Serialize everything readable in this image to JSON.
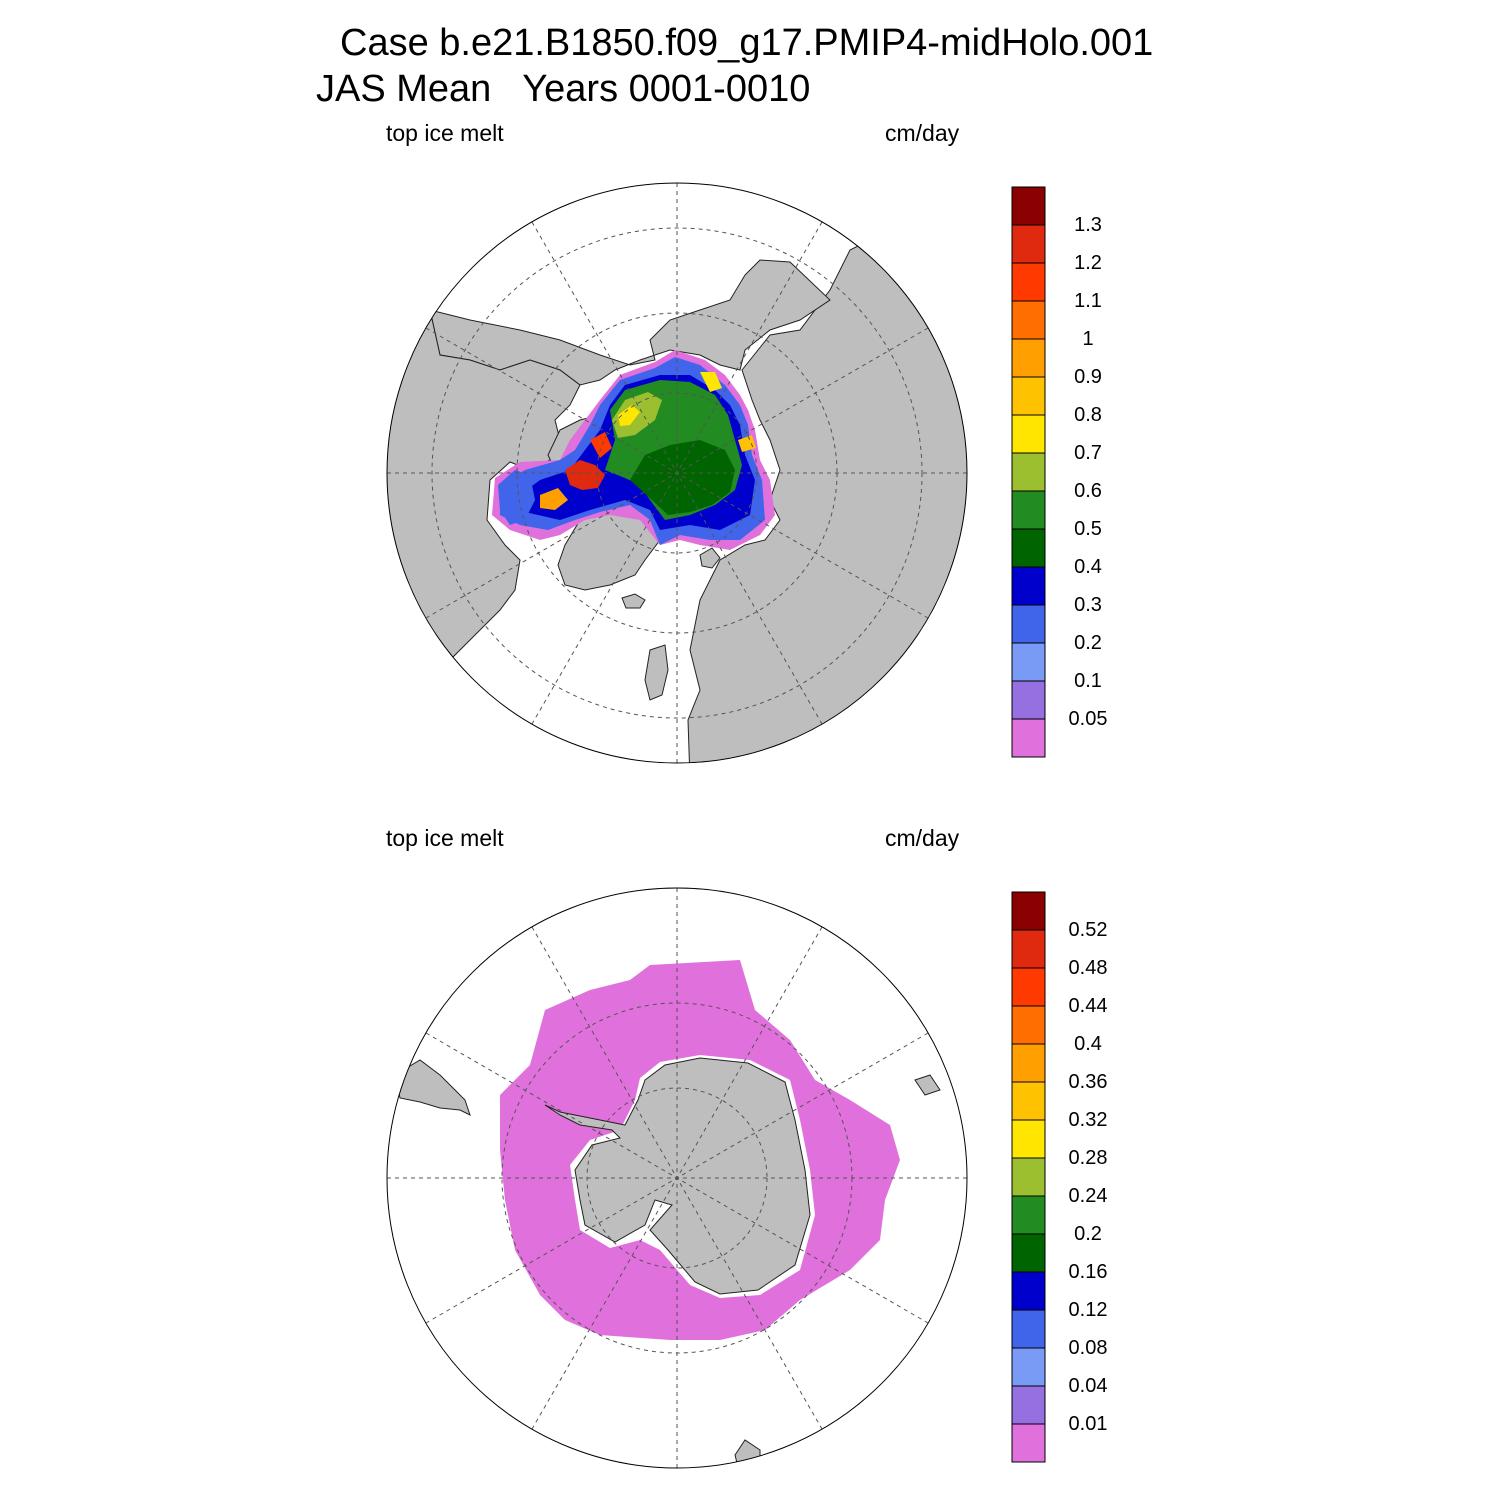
{
  "title": {
    "line1": "Case b.e21.B1850.f09_g17.PMIP4-midHolo.001",
    "line2": "JAS Mean   Years 0001-0010"
  },
  "panels": [
    {
      "id": "north",
      "variable_label": "top ice melt",
      "units_label": "cm/day",
      "hemisphere": "north",
      "colorbar": {
        "colors": [
          "#e070db",
          "#9670e0",
          "#7a9bf5",
          "#4065eb",
          "#0000cd",
          "#006400",
          "#228b22",
          "#9cbf30",
          "#ffe600",
          "#ffc200",
          "#ffa000",
          "#ff6e00",
          "#ff3a00",
          "#e02a10",
          "#8b0000"
        ],
        "labels": [
          "0.05",
          "0.1",
          "0.2",
          "0.3",
          "0.4",
          "0.5",
          "0.6",
          "0.7",
          "0.8",
          "0.9",
          "1",
          "1.1",
          "1.2",
          "1.3"
        ]
      }
    },
    {
      "id": "south",
      "variable_label": "top ice melt",
      "units_label": "cm/day",
      "hemisphere": "south",
      "colorbar": {
        "colors": [
          "#e070db",
          "#9670e0",
          "#7a9bf5",
          "#4065eb",
          "#0000cd",
          "#006400",
          "#228b22",
          "#9cbf30",
          "#ffe600",
          "#ffc200",
          "#ffa000",
          "#ff6e00",
          "#ff3a00",
          "#e02a10",
          "#8b0000"
        ],
        "labels": [
          "0.01",
          "0.04",
          "0.08",
          "0.12",
          "0.16",
          "0.2",
          "0.24",
          "0.28",
          "0.32",
          "0.36",
          "0.4",
          "0.44",
          "0.48",
          "0.52"
        ]
      }
    }
  ],
  "colors": {
    "land": "#bebebe",
    "ocean": "#ffffff",
    "grid": "#555555"
  }
}
